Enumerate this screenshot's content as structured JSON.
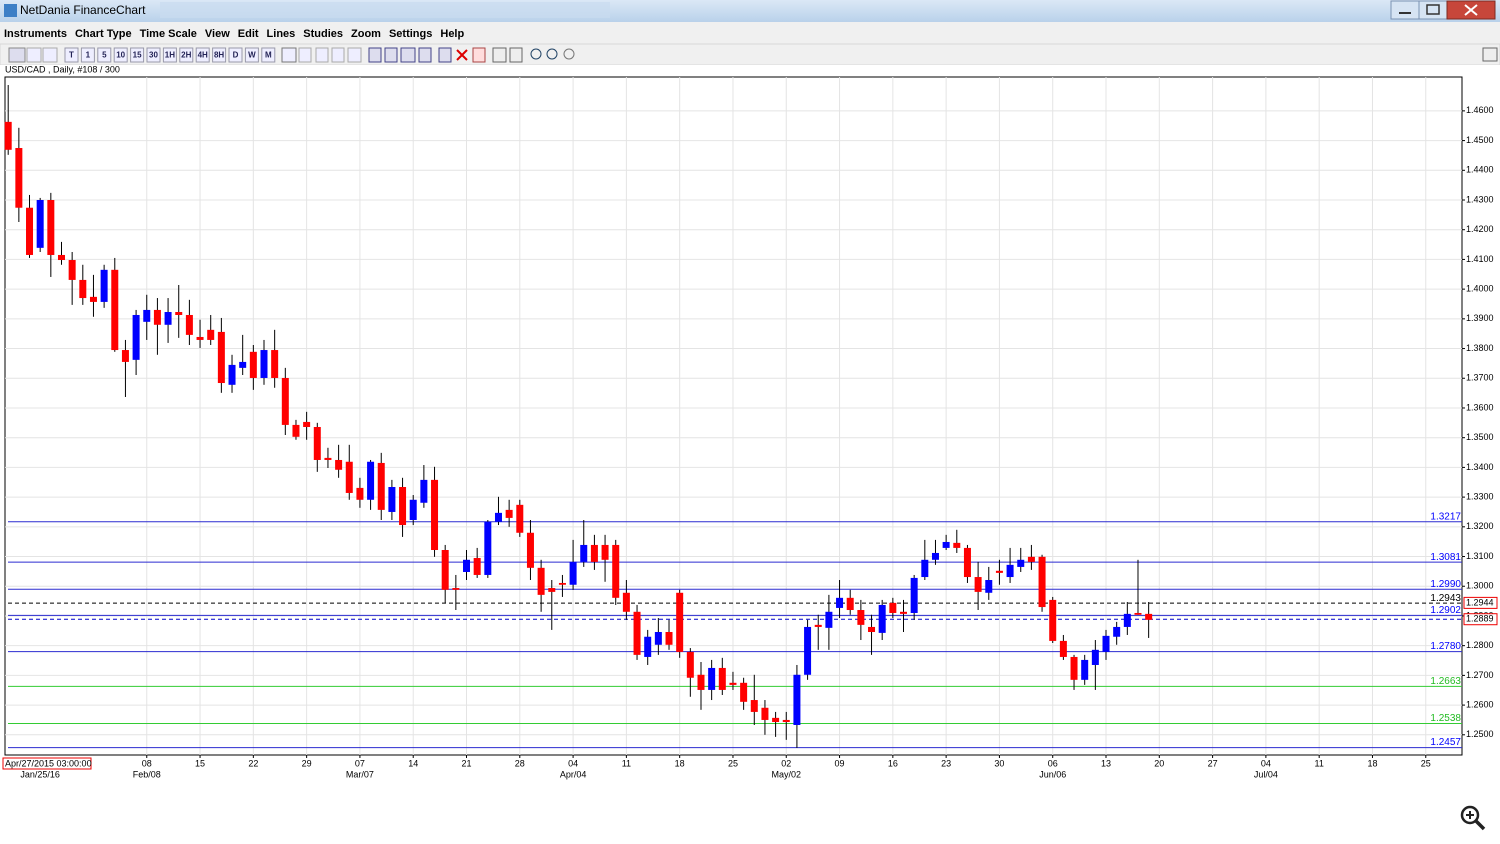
{
  "window": {
    "title": "NetDania FinanceChart"
  },
  "menu": [
    "Instruments",
    "Chart Type",
    "Time Scale",
    "View",
    "Edit",
    "Lines",
    "Studies",
    "Zoom",
    "Settings",
    "Help"
  ],
  "toolbar": {
    "timeframes": [
      "T",
      "1",
      "5",
      "10",
      "15",
      "30",
      "1H",
      "2H",
      "4H",
      "8H",
      "D",
      "W",
      "M"
    ]
  },
  "chart_data": {
    "type": "candlestick",
    "title": "USD/CAD , Daily, #108 / 300",
    "open": [
      1.4563,
      1.4475,
      1.4274,
      1.4139,
      1.43,
      1.4115,
      1.4098,
      1.4031,
      1.3974,
      1.3957,
      1.4065,
      1.3795,
      1.3762,
      1.389,
      1.393,
      1.388,
      1.3923,
      1.3913,
      1.3839,
      1.3863,
      1.3856,
      1.3678,
      1.3735,
      1.3789,
      1.3701,
      1.3795,
      1.3701,
      1.3543,
      1.3553,
      1.3536,
      1.3432,
      1.3425,
      1.3419,
      1.3331,
      1.3291,
      1.3415,
      1.325,
      1.3334,
      1.3223,
      1.3281,
      1.3358,
      1.3122,
      1.2994,
      1.3048,
      1.3095,
      1.3038,
      1.3217,
      1.3257,
      1.3274,
      1.318,
      1.3062,
      1.2994,
      1.3011,
      1.3005,
      1.3082,
      1.3139,
      1.3139,
      1.3139,
      1.2978,
      1.2914,
      1.2762,
      1.2803,
      1.2846,
      1.2978,
      1.2779,
      1.2702,
      1.2651,
      1.2725,
      1.2675,
      1.2675,
      1.2617,
      1.2591,
      1.2557,
      1.255,
      1.2533,
      1.2702,
      1.287,
      1.286,
      1.2927,
      1.2961,
      1.292,
      1.2863,
      1.2843,
      1.2944,
      1.2914,
      1.291,
      1.3031,
      1.3089,
      1.3129,
      1.3146,
      1.3129,
      1.3031,
      1.2978,
      1.3052,
      1.3031,
      1.3065,
      1.3099,
      1.3099,
      1.2954,
      1.2816,
      1.2762,
      1.2685,
      1.2735,
      1.2779,
      1.283,
      1.2863,
      1.291,
      1.2907
    ],
    "high": [
      1.4687,
      1.4543,
      1.4317,
      1.4307,
      1.4324,
      1.4159,
      1.4125,
      1.4082,
      1.4048,
      1.4082,
      1.4105,
      1.3829,
      1.393,
      1.3981,
      1.397,
      1.397,
      1.4014,
      1.3964,
      1.3897,
      1.3913,
      1.3903,
      1.3779,
      1.3846,
      1.3812,
      1.3829,
      1.3863,
      1.3735,
      1.356,
      1.3587,
      1.355,
      1.3466,
      1.3476,
      1.3476,
      1.3365,
      1.3425,
      1.3449,
      1.3358,
      1.3365,
      1.3307,
      1.3408,
      1.3402,
      1.3139,
      1.3038,
      1.3122,
      1.3129,
      1.3223,
      1.3301,
      1.3291,
      1.3291,
      1.3223,
      1.3089,
      1.3021,
      1.3038,
      1.3156,
      1.3223,
      1.3173,
      1.3173,
      1.3156,
      1.3021,
      1.2937,
      1.2853,
      1.2893,
      1.2887,
      1.2988,
      1.2792,
      1.2745,
      1.2752,
      1.2759,
      1.2712,
      1.2692,
      1.2702,
      1.2617,
      1.2577,
      1.2577,
      1.2735,
      1.2887,
      1.2904,
      1.2971,
      1.3021,
      1.2988,
      1.2954,
      1.2904,
      1.2954,
      1.2961,
      1.2954,
      1.3038,
      1.3156,
      1.3156,
      1.3173,
      1.319,
      1.3139,
      1.3082,
      1.3065,
      1.3089,
      1.3129,
      1.3129,
      1.3139,
      1.3106,
      1.2964,
      1.2836,
      1.2769,
      1.2769,
      1.2819,
      1.2853,
      1.288,
      1.2947,
      1.3089,
      1.2947
    ],
    "low": [
      1.4452,
      1.4226,
      1.4105,
      1.4125,
      1.4041,
      1.4082,
      1.3947,
      1.3947,
      1.3907,
      1.3937,
      1.3789,
      1.3637,
      1.3711,
      1.3829,
      1.3779,
      1.3819,
      1.3836,
      1.3812,
      1.3802,
      1.3812,
      1.3651,
      1.3651,
      1.3711,
      1.3661,
      1.3678,
      1.3668,
      1.3509,
      1.3493,
      1.3493,
      1.3385,
      1.3398,
      1.3365,
      1.3291,
      1.3264,
      1.3257,
      1.3223,
      1.3223,
      1.3166,
      1.3206,
      1.3264,
      1.3099,
      1.2944,
      1.292,
      1.3021,
      1.3028,
      1.3028,
      1.3206,
      1.32,
      1.3166,
      1.3021,
      1.2914,
      1.2853,
      1.2964,
      1.2988,
      1.3065,
      1.3055,
      1.3015,
      1.2937,
      1.2887,
      1.2752,
      1.2735,
      1.2769,
      1.2786,
      1.2759,
      1.2628,
      1.2584,
      1.2617,
      1.2634,
      1.2651,
      1.2584,
      1.2533,
      1.25,
      1.2493,
      1.2483,
      1.2456,
      1.2685,
      1.2786,
      1.2786,
      1.2893,
      1.2904,
      1.2819,
      1.2769,
      1.2819,
      1.2893,
      1.2846,
      1.2887,
      1.3021,
      1.3072,
      1.3122,
      1.3112,
      1.3011,
      1.292,
      1.2954,
      1.3005,
      1.3011,
      1.3048,
      1.3055,
      1.2914,
      1.2809,
      1.2752,
      1.2651,
      1.2668,
      1.2651,
      1.2752,
      1.2803,
      1.2836,
      1.2904,
      1.2826
    ],
    "close": [
      1.4469,
      1.4274,
      1.4115,
      1.43,
      1.4115,
      1.4098,
      1.4031,
      1.397,
      1.3957,
      1.4065,
      1.3795,
      1.3755,
      1.3913,
      1.393,
      1.388,
      1.3923,
      1.3913,
      1.3846,
      1.3829,
      1.3829,
      1.3684,
      1.3745,
      1.3755,
      1.3701,
      1.3795,
      1.3701,
      1.3543,
      1.3503,
      1.3536,
      1.3425,
      1.3425,
      1.3392,
      1.3314,
      1.3291,
      1.3419,
      1.3257,
      1.3334,
      1.3206,
      1.3291,
      1.3358,
      1.3122,
      1.2988,
      1.2988,
      1.3089,
      1.3038,
      1.3217,
      1.3247,
      1.323,
      1.318,
      1.3062,
      1.2971,
      1.2981,
      1.3005,
      1.3082,
      1.3139,
      1.3082,
      1.3089,
      1.2961,
      1.2914,
      1.2769,
      1.283,
      1.2846,
      1.2803,
      1.2779,
      1.2692,
      1.2651,
      1.2725,
      1.2651,
      1.2668,
      1.2611,
      1.2577,
      1.255,
      1.2543,
      1.2543,
      1.2702,
      1.2863,
      1.2863,
      1.2914,
      1.2961,
      1.292,
      1.287,
      1.2846,
      1.2937,
      1.291,
      1.2907,
      1.3028,
      1.3089,
      1.3112,
      1.3149,
      1.3129,
      1.3031,
      1.2981,
      1.3021,
      1.3045,
      1.3072,
      1.3089,
      1.3082,
      1.293,
      1.2816,
      1.2762,
      1.2685,
      1.2752,
      1.2786,
      1.2833,
      1.2863,
      1.2907,
      1.2904,
      1.2887
    ],
    "up_color": "#0000ff",
    "down_color": "#ff0000",
    "ylim": [
      1.2432,
      1.4714
    ],
    "yticks": [
      {
        "value": 1.25,
        "label": "1.2500"
      },
      {
        "value": 1.26,
        "label": "1.2600"
      },
      {
        "value": 1.27,
        "label": "1.2700"
      },
      {
        "value": 1.28,
        "label": "1.2800"
      },
      {
        "value": 1.29,
        "label": "1.2900"
      },
      {
        "value": 1.3,
        "label": "1.3000"
      },
      {
        "value": 1.31,
        "label": "1.3100"
      },
      {
        "value": 1.32,
        "label": "1.3200"
      },
      {
        "value": 1.33,
        "label": "1.3300"
      },
      {
        "value": 1.34,
        "label": "1.3400"
      },
      {
        "value": 1.35,
        "label": "1.3500"
      },
      {
        "value": 1.36,
        "label": "1.3600"
      },
      {
        "value": 1.37,
        "label": "1.3700"
      },
      {
        "value": 1.38,
        "label": "1.3800"
      },
      {
        "value": 1.39,
        "label": "1.3900"
      },
      {
        "value": 1.4,
        "label": "1.4000"
      },
      {
        "value": 1.41,
        "label": "1.4100"
      },
      {
        "value": 1.42,
        "label": "1.4200"
      },
      {
        "value": 1.43,
        "label": "1.4300"
      },
      {
        "value": 1.44,
        "label": "1.4400"
      },
      {
        "value": 1.45,
        "label": "1.4500"
      },
      {
        "value": 1.46,
        "label": "1.4600"
      }
    ],
    "xlim": [
      -0.3,
      136.4
    ],
    "xticks": [
      {
        "value": 13,
        "label": "08"
      },
      {
        "value": 18,
        "label": "15"
      },
      {
        "value": 23,
        "label": "22"
      },
      {
        "value": 28,
        "label": "29"
      },
      {
        "value": 33,
        "label": "07"
      },
      {
        "value": 38,
        "label": "14"
      },
      {
        "value": 43,
        "label": "21"
      },
      {
        "value": 48,
        "label": "28"
      },
      {
        "value": 53,
        "label": "04"
      },
      {
        "value": 58,
        "label": "11"
      },
      {
        "value": 63,
        "label": "18"
      },
      {
        "value": 68,
        "label": "25"
      },
      {
        "value": 73,
        "label": "02"
      },
      {
        "value": 78,
        "label": "09"
      },
      {
        "value": 83,
        "label": "16"
      },
      {
        "value": 88,
        "label": "23"
      },
      {
        "value": 93,
        "label": "30"
      },
      {
        "value": 98,
        "label": "06"
      },
      {
        "value": 103,
        "label": "13"
      },
      {
        "value": 108,
        "label": "20"
      },
      {
        "value": 113,
        "label": "27"
      },
      {
        "value": 118,
        "label": "04"
      },
      {
        "value": 123,
        "label": "11"
      },
      {
        "value": 128,
        "label": "18"
      },
      {
        "value": 133,
        "label": "25"
      }
    ],
    "xticks_month": [
      {
        "value": 3,
        "label": "Jan/25/16"
      },
      {
        "value": 13,
        "label": "Feb/08"
      },
      {
        "value": 33,
        "label": "Mar/07"
      },
      {
        "value": 53,
        "label": "Apr/04"
      },
      {
        "value": 73,
        "label": "May/02"
      },
      {
        "value": 98,
        "label": "Jun/06"
      },
      {
        "value": 118,
        "label": "Jul/04"
      }
    ],
    "levels": [
      {
        "value": 1.3217,
        "label": "1.3217",
        "color": "#2b2bd0"
      },
      {
        "value": 1.3081,
        "label": "1.3081",
        "color": "#2b2bd0"
      },
      {
        "value": 1.299,
        "label": "1.2990",
        "color": "#2b2bd0"
      },
      {
        "value": 1.2943,
        "label": "1.2943",
        "color": "#000000",
        "dashed": true
      },
      {
        "value": 1.2902,
        "label": "1.2902",
        "color": "#2b2bd0"
      },
      {
        "value": 1.278,
        "label": "1.2780",
        "color": "#2b2bd0"
      },
      {
        "value": 1.2663,
        "label": "1.2663",
        "color": "#33cc33"
      },
      {
        "value": 1.2538,
        "label": "1.2538",
        "color": "#33cc33"
      },
      {
        "value": 1.2457,
        "label": "1.2457",
        "color": "#2b2bd0"
      }
    ],
    "price_markers": [
      {
        "value": 1.2944,
        "label": "1.2944"
      },
      {
        "value": 1.2889,
        "label": "1.2889",
        "line_color": "#0000cc"
      }
    ],
    "cursor_time": "Apr/27/2015 03:00:00",
    "grid": true
  }
}
